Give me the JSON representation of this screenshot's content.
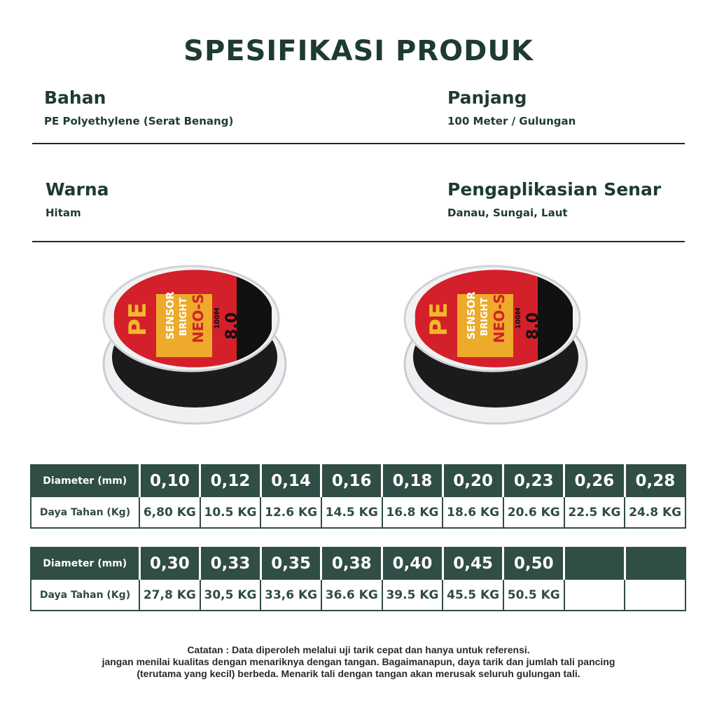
{
  "title": "SPESIFIKASI PRODUK",
  "specs": [
    {
      "heading": "Bahan",
      "value": "PE Polyethylene (Serat Benang)"
    },
    {
      "heading": "Panjang",
      "value": "100 Meter / Gulungan"
    },
    {
      "heading": "Warna",
      "value": "Hitam"
    },
    {
      "heading": "Pengaplikasian Senar",
      "value": "Danau, Sungai, Laut"
    }
  ],
  "product_label": {
    "line1": "PE",
    "line2": "SENSOR",
    "line3": "BRIGHT",
    "line4": "NEO-Si",
    "size": "8.0",
    "length": "100M"
  },
  "tables": [
    {
      "header_label": "Diameter (mm)",
      "row_label": "Daya Tahan (Kg)",
      "diameters": [
        "0,10",
        "0,12",
        "0,14",
        "0,16",
        "0,18",
        "0,20",
        "0,23",
        "0,26",
        "0,28"
      ],
      "strengths": [
        "6,80 KG",
        "10.5 KG",
        "12.6 KG",
        "14.5 KG",
        "16.8 KG",
        "18.6 KG",
        "20.6 KG",
        "22.5 KG",
        "24.8 KG"
      ]
    },
    {
      "header_label": "Diameter (mm)",
      "row_label": "Daya Tahan (Kg)",
      "diameters": [
        "0,30",
        "0,33",
        "0,35",
        "0,38",
        "0,40",
        "0,45",
        "0,50",
        "",
        ""
      ],
      "strengths": [
        "27,8 KG",
        "30,5 KG",
        "33,6 KG",
        "36.6 KG",
        "39.5 KG",
        "45.5 KG",
        "50.5 KG",
        "",
        ""
      ]
    }
  ],
  "note": [
    "Catatan : Data diperoleh melalui uji tarik cepat dan hanya untuk referensi.",
    "jangan menilai kualitas dengan menariknya dengan tangan. Bagaimanapun, daya tarik dan jumlah tali pancing",
    "(terutama yang kecil) berbeda. Menarik tali dengan tangan akan merusak seluruh gulungan tali."
  ],
  "colors": {
    "primary": "#304d46",
    "text": "#1e3a34"
  }
}
